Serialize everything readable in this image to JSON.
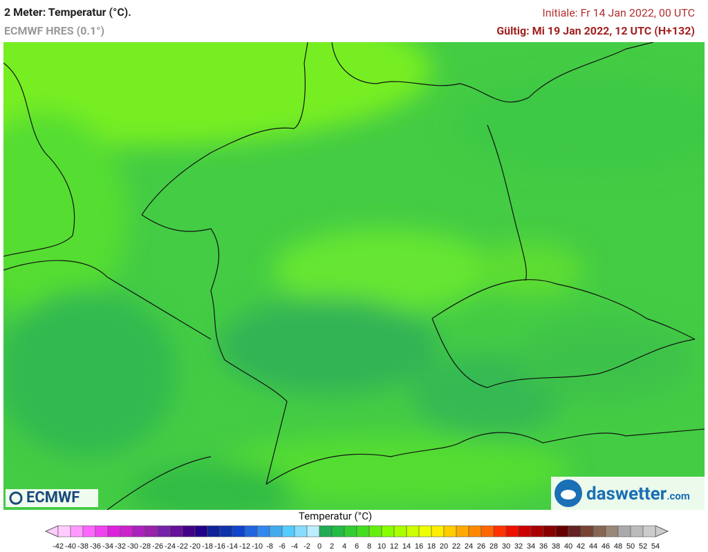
{
  "header": {
    "title": "2 Meter: Temperatur (°C).",
    "model": "ECMWF HRES (0.1°)",
    "init": "Initiale: Fr 14 Jan 2022, 00 UTC",
    "valid": "Gültig: Mi 19 Jan 2022, 12 UTC (H+132)"
  },
  "logos": {
    "left": "ECMWF",
    "right": "daswetter",
    "right_suffix": ".com"
  },
  "colorbar": {
    "label": "Temperatur (°C)",
    "ticks": [
      -42,
      -40,
      -38,
      -36,
      -34,
      -32,
      -30,
      -28,
      -26,
      -24,
      -22,
      -20,
      -18,
      -16,
      -14,
      -12,
      -10,
      -8,
      -6,
      -4,
      -2,
      0,
      2,
      4,
      6,
      8,
      10,
      12,
      14,
      16,
      18,
      20,
      22,
      24,
      26,
      28,
      30,
      32,
      34,
      36,
      38,
      40,
      42,
      44,
      46,
      48,
      50,
      52,
      54
    ],
    "colors": [
      "#ffccff",
      "#ff99ff",
      "#ff66ff",
      "#ee44ee",
      "#dd22dd",
      "#cc22cc",
      "#aa22bb",
      "#9922aa",
      "#7722aa",
      "#661199",
      "#440088",
      "#220088",
      "#112299",
      "#1133aa",
      "#1144cc",
      "#2266dd",
      "#3388ee",
      "#44aaee",
      "#55ccff",
      "#88ddff",
      "#bbeeff",
      "#22aa55",
      "#22bb44",
      "#33cc33",
      "#44dd22",
      "#66ee11",
      "#88ff00",
      "#aaff00",
      "#ccff00",
      "#eeff00",
      "#ffee00",
      "#ffcc00",
      "#ffaa00",
      "#ff8800",
      "#ff6600",
      "#ff3300",
      "#ee1100",
      "#cc0000",
      "#aa0000",
      "#880000",
      "#660000",
      "#662222",
      "#774433",
      "#886655",
      "#998877",
      "#aaaaaa",
      "#bbbbbb",
      "#cccccc"
    ]
  }
}
